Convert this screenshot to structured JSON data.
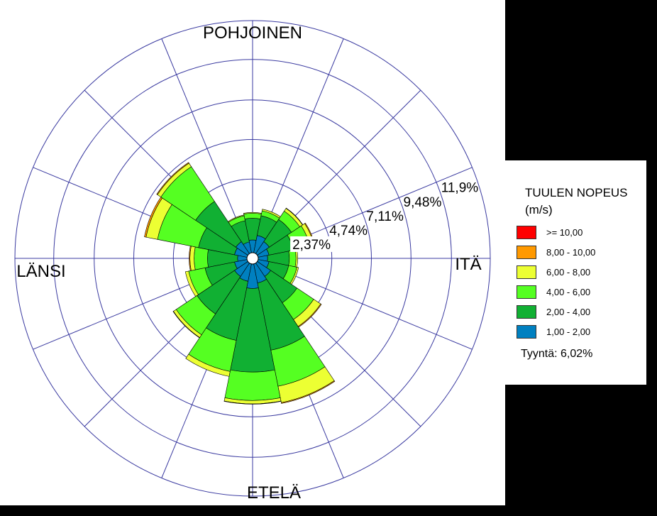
{
  "chart_data": {
    "type": "wind-rose",
    "directions": [
      "N",
      "NNE",
      "NE",
      "ENE",
      "E",
      "ESE",
      "SE",
      "SSE",
      "S",
      "SSW",
      "SW",
      "WSW",
      "W",
      "WNW",
      "NW",
      "NNW"
    ],
    "compass_labels": {
      "north": "POHJOINEN",
      "east": "ITÄ",
      "south": "ETELÄ",
      "west": "LÄNSI"
    },
    "rings_percent": [
      2.37,
      4.74,
      7.11,
      9.48,
      11.9
    ],
    "ring_labels": [
      "2,37%",
      "4,74%",
      "7,11%",
      "9,48%",
      "11,9%"
    ],
    "rmax_percent": 14.22,
    "legend_title_line1": "TUULEN NOPEUS",
    "legend_title_line2": "(m/s)",
    "bins": [
      {
        "label": ">= 10,00",
        "color": "#ff0000"
      },
      {
        "label": "8,00 - 10,00",
        "color": "#ff9900"
      },
      {
        "label": "6,00 - 8,00",
        "color": "#ecff33"
      },
      {
        "label": "4,00 - 6,00",
        "color": "#55ff22"
      },
      {
        "label": "2,00 - 4,00",
        "color": "#11b033"
      },
      {
        "label": "1,00 - 2,00",
        "color": "#0080c0"
      }
    ],
    "stack_order": [
      "1,00 - 2,00",
      "2,00 - 4,00",
      "4,00 - 6,00",
      "6,00 - 8,00",
      "8,00 - 10,00",
      ">= 10,00"
    ],
    "calm_text": "Tyyntä: 6,02%",
    "cumulative_percent": [
      [
        1.1,
        2.4,
        2.7,
        2.75,
        2.75,
        2.75
      ],
      [
        1.4,
        2.6,
        2.9,
        3.0,
        3.0,
        3.0
      ],
      [
        1.2,
        2.8,
        3.4,
        3.6,
        3.62,
        3.62
      ],
      [
        1.0,
        2.5,
        3.5,
        3.75,
        3.8,
        3.8
      ],
      [
        0.9,
        2.2,
        2.6,
        2.7,
        2.7,
        2.7
      ],
      [
        1.0,
        2.2,
        2.7,
        2.8,
        2.8,
        2.8
      ],
      [
        1.3,
        3.2,
        4.4,
        4.9,
        4.95,
        4.95
      ],
      [
        1.5,
        5.6,
        7.8,
        8.8,
        8.85,
        8.85
      ],
      [
        1.8,
        6.8,
        8.5,
        8.7,
        8.72,
        8.72
      ],
      [
        1.4,
        5.0,
        6.9,
        7.2,
        7.2,
        7.2
      ],
      [
        1.3,
        4.0,
        5.5,
        5.7,
        5.72,
        5.72
      ],
      [
        1.1,
        2.9,
        3.9,
        4.1,
        4.1,
        4.1
      ],
      [
        0.9,
        2.7,
        3.5,
        3.75,
        3.8,
        3.8
      ],
      [
        1.1,
        3.3,
        5.8,
        6.5,
        6.6,
        6.6
      ],
      [
        1.2,
        4.1,
        6.6,
        6.85,
        6.9,
        6.9
      ],
      [
        1.0,
        2.3,
        2.6,
        2.65,
        2.65,
        2.65
      ]
    ]
  }
}
